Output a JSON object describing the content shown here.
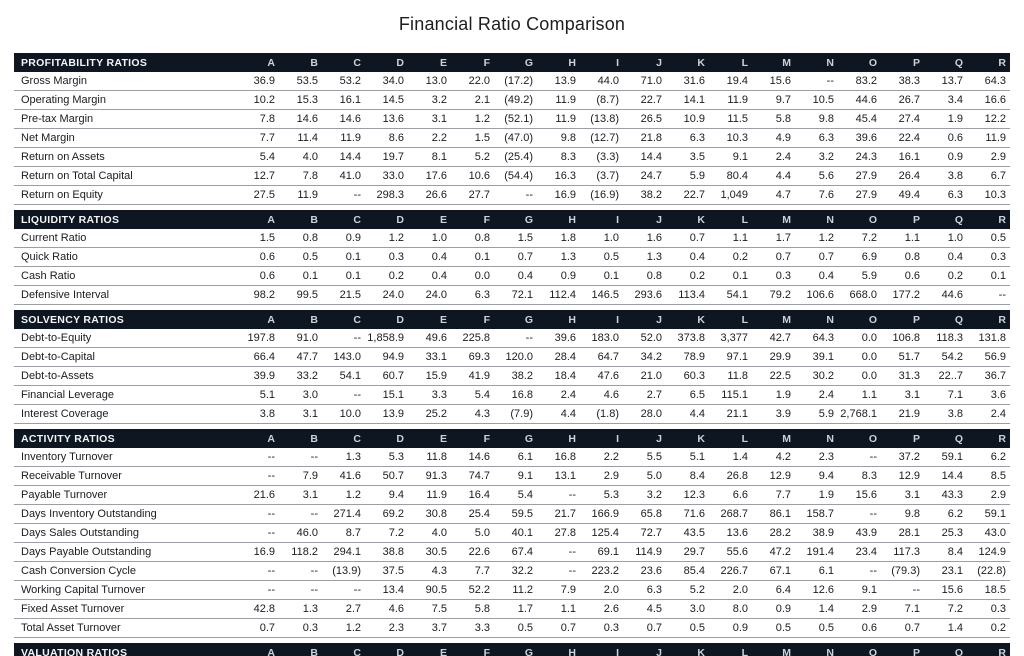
{
  "title": "Financial Ratio Comparison",
  "columns": [
    "A",
    "B",
    "C",
    "D",
    "E",
    "F",
    "G",
    "H",
    "I",
    "J",
    "K",
    "L",
    "M",
    "N",
    "O",
    "P",
    "Q",
    "R"
  ],
  "colors": {
    "section_header_bg": "#0e1621",
    "section_header_text": "#f3f5f7",
    "column_letter_text": "#ccd2d9",
    "row_border": "#9b9fa5",
    "body_text": "#1c1c1c"
  },
  "sections": [
    {
      "name": "PROFITABILITY RATIOS",
      "rows": [
        {
          "label": "Gross Margin",
          "values": [
            "36.9",
            "53.5",
            "53.2",
            "34.0",
            "13.0",
            "22.0",
            "(17.2)",
            "13.9",
            "44.0",
            "71.0",
            "31.6",
            "19.4",
            "15.6",
            "--",
            "83.2",
            "38.3",
            "13.7",
            "64.3"
          ]
        },
        {
          "label": "Operating Margin",
          "values": [
            "10.2",
            "15.3",
            "16.1",
            "14.5",
            "3.2",
            "2.1",
            "(49.2)",
            "11.9",
            "(8.7)",
            "22.7",
            "14.1",
            "11.9",
            "9.7",
            "10.5",
            "44.6",
            "26.7",
            "3.4",
            "16.6"
          ]
        },
        {
          "label": "Pre-tax Margin",
          "values": [
            "7.8",
            "14.6",
            "14.6",
            "13.6",
            "3.1",
            "1.2",
            "(52.1)",
            "11.9",
            "(13.8)",
            "26.5",
            "10.9",
            "11.5",
            "5.8",
            "9.8",
            "45.4",
            "27.4",
            "1.9",
            "12.2"
          ]
        },
        {
          "label": "Net Margin",
          "values": [
            "7.7",
            "11.4",
            "11.9",
            "8.6",
            "2.2",
            "1.5",
            "(47.0)",
            "9.8",
            "(12.7)",
            "21.8",
            "6.3",
            "10.3",
            "4.9",
            "6.3",
            "39.6",
            "22.4",
            "0.6",
            "11.9"
          ]
        },
        {
          "label": "Return on Assets",
          "values": [
            "5.4",
            "4.0",
            "14.4",
            "19.7",
            "8.1",
            "5.2",
            "(25.4)",
            "8.3",
            "(3.3)",
            "14.4",
            "3.5",
            "9.1",
            "2.4",
            "3.2",
            "24.3",
            "16.1",
            "0.9",
            "2.9"
          ]
        },
        {
          "label": "Return on Total Capital",
          "values": [
            "12.7",
            "7.8",
            "41.0",
            "33.0",
            "17.6",
            "10.6",
            "(54.4)",
            "16.3",
            "(3.7)",
            "24.7",
            "5.9",
            "80.4",
            "4.4",
            "5.6",
            "27.9",
            "26.4",
            "3.8",
            "6.7"
          ]
        },
        {
          "label": "Return on Equity",
          "values": [
            "27.5",
            "11.9",
            "--",
            "298.3",
            "26.6",
            "27.7",
            "--",
            "16.9",
            "(16.9)",
            "38.2",
            "22.7",
            "1,049",
            "4.7",
            "7.6",
            "27.9",
            "49.4",
            "6.3",
            "10.3"
          ]
        }
      ]
    },
    {
      "name": "LIQUIDITY RATIOS",
      "rows": [
        {
          "label": "Current Ratio",
          "values": [
            "1.5",
            "0.8",
            "0.9",
            "1.2",
            "1.0",
            "0.8",
            "1.5",
            "1.8",
            "1.0",
            "1.6",
            "0.7",
            "1.1",
            "1.7",
            "1.2",
            "7.2",
            "1.1",
            "1.0",
            "0.5"
          ]
        },
        {
          "label": "Quick Ratio",
          "values": [
            "0.6",
            "0.5",
            "0.1",
            "0.3",
            "0.4",
            "0.1",
            "0.7",
            "1.3",
            "0.5",
            "1.3",
            "0.4",
            "0.2",
            "0.7",
            "0.7",
            "6.9",
            "0.8",
            "0.4",
            "0.3"
          ]
        },
        {
          "label": "Cash Ratio",
          "values": [
            "0.6",
            "0.1",
            "0.1",
            "0.2",
            "0.4",
            "0.0",
            "0.4",
            "0.9",
            "0.1",
            "0.8",
            "0.2",
            "0.1",
            "0.3",
            "0.4",
            "5.9",
            "0.6",
            "0.2",
            "0.1"
          ]
        },
        {
          "label": "Defensive Interval",
          "values": [
            "98.2",
            "99.5",
            "21.5",
            "24.0",
            "24.0",
            "6.3",
            "72.1",
            "112.4",
            "146.5",
            "293.6",
            "113.4",
            "54.1",
            "79.2",
            "106.6",
            "668.0",
            "177.2",
            "44.6",
            "--"
          ]
        }
      ]
    },
    {
      "name": "SOLVENCY RATIOS",
      "rows": [
        {
          "label": "Debt-to-Equity",
          "values": [
            "197.8",
            "91.0",
            "--",
            "1,858.9",
            "49.6",
            "225.8",
            "--",
            "39.6",
            "183.0",
            "52.0",
            "373.8",
            "3,377",
            "42.7",
            "64.3",
            "0.0",
            "106.8",
            "118.3",
            "131.8"
          ]
        },
        {
          "label": "Debt-to-Capital",
          "values": [
            "66.4",
            "47.7",
            "143.0",
            "94.9",
            "33.1",
            "69.3",
            "120.0",
            "28.4",
            "64.7",
            "34.2",
            "78.9",
            "97.1",
            "29.9",
            "39.1",
            "0.0",
            "51.7",
            "54.2",
            "56.9"
          ]
        },
        {
          "label": "Debt-to-Assets",
          "values": [
            "39.9",
            "33.2",
            "54.1",
            "60.7",
            "15.9",
            "41.9",
            "38.2",
            "18.4",
            "47.6",
            "21.0",
            "60.3",
            "11.8",
            "22.5",
            "30.2",
            "0.0",
            "31.3",
            "22..7",
            "36.7"
          ]
        },
        {
          "label": "Financial Leverage",
          "values": [
            "5.1",
            "3.0",
            "--",
            "15.1",
            "3.3",
            "5.4",
            "16.8",
            "2.4",
            "4.6",
            "2.7",
            "6.5",
            "115.1",
            "1.9",
            "2.4",
            "1.1",
            "3.1",
            "7.1",
            "3.6"
          ]
        },
        {
          "label": "Interest Coverage",
          "values": [
            "3.8",
            "3.1",
            "10.0",
            "13.9",
            "25.2",
            "4.3",
            "(7.9)",
            "4.4",
            "(1.8)",
            "28.0",
            "4.4",
            "21.1",
            "3.9",
            "5.9",
            "2,768.1",
            "21.9",
            "3.8",
            "2.4"
          ]
        }
      ]
    },
    {
      "name": "ACTIVITY RATIOS",
      "rows": [
        {
          "label": "Inventory Turnover",
          "values": [
            "--",
            "--",
            "1.3",
            "5.3",
            "11.8",
            "14.6",
            "6.1",
            "16.8",
            "2.2",
            "5.5",
            "5.1",
            "1.4",
            "4.2",
            "2.3",
            "--",
            "37.2",
            "59.1",
            "6.2"
          ]
        },
        {
          "label": "Receivable Turnover",
          "values": [
            "--",
            "7.9",
            "41.6",
            "50.7",
            "91.3",
            "74.7",
            "9.1",
            "13.1",
            "2.9",
            "5.0",
            "8.4",
            "26.8",
            "12.9",
            "9.4",
            "8.3",
            "12.9",
            "14.4",
            "8.5"
          ]
        },
        {
          "label": "Payable Turnover",
          "values": [
            "21.6",
            "3.1",
            "1.2",
            "9.4",
            "11.9",
            "16.4",
            "5.4",
            "--",
            "5.3",
            "3.2",
            "12.3",
            "6.6",
            "7.7",
            "1.9",
            "15.6",
            "3.1",
            "43.3",
            "2.9"
          ]
        },
        {
          "label": "Days Inventory Outstanding",
          "values": [
            "--",
            "--",
            "271.4",
            "69.2",
            "30.8",
            "25.4",
            "59.5",
            "21.7",
            "166.9",
            "65.8",
            "71.6",
            "268.7",
            "86.1",
            "158.7",
            "--",
            "9.8",
            "6.2",
            "59.1"
          ]
        },
        {
          "label": "Days Sales Outstanding",
          "values": [
            "--",
            "46.0",
            "8.7",
            "7.2",
            "4.0",
            "5.0",
            "40.1",
            "27.8",
            "125.4",
            "72.7",
            "43.5",
            "13.6",
            "28.2",
            "38.9",
            "43.9",
            "28.1",
            "25.3",
            "43.0"
          ]
        },
        {
          "label": "Days Payable Outstanding",
          "values": [
            "16.9",
            "118.2",
            "294.1",
            "38.8",
            "30.5",
            "22.6",
            "67.4",
            "--",
            "69.1",
            "114.9",
            "29.7",
            "55.6",
            "47.2",
            "191.4",
            "23.4",
            "117.3",
            "8.4",
            "124.9"
          ]
        },
        {
          "label": "Cash Conversion Cycle",
          "values": [
            "--",
            "--",
            "(13.9)",
            "37.5",
            "4.3",
            "7.7",
            "32.2",
            "--",
            "223.2",
            "23.6",
            "85.4",
            "226.7",
            "67.1",
            "6.1",
            "--",
            "(79.3)",
            "23.1",
            "(22.8)"
          ]
        },
        {
          "label": "Working Capital Turnover",
          "values": [
            "--",
            "--",
            "--",
            "13.4",
            "90.5",
            "52.2",
            "11.2",
            "7.9",
            "2.0",
            "6.3",
            "5.2",
            "2.0",
            "6.4",
            "12.6",
            "9.1",
            "--",
            "15.6",
            "18.5"
          ]
        },
        {
          "label": "Fixed Asset Turnover",
          "values": [
            "42.8",
            "1.3",
            "2.7",
            "4.6",
            "7.5",
            "5.8",
            "1.7",
            "1.1",
            "2.6",
            "4.5",
            "3.0",
            "8.0",
            "0.9",
            "1.4",
            "2.9",
            "7.1",
            "7.2",
            "0.3"
          ]
        },
        {
          "label": "Total Asset Turnover",
          "values": [
            "0.7",
            "0.3",
            "1.2",
            "2.3",
            "3.7",
            "3.3",
            "0.5",
            "0.7",
            "0.3",
            "0.7",
            "0.5",
            "0.9",
            "0.5",
            "0.5",
            "0.6",
            "0.7",
            "1.4",
            "0.2"
          ]
        }
      ]
    },
    {
      "name": "VALUATION RATIOS",
      "rows": []
    }
  ]
}
